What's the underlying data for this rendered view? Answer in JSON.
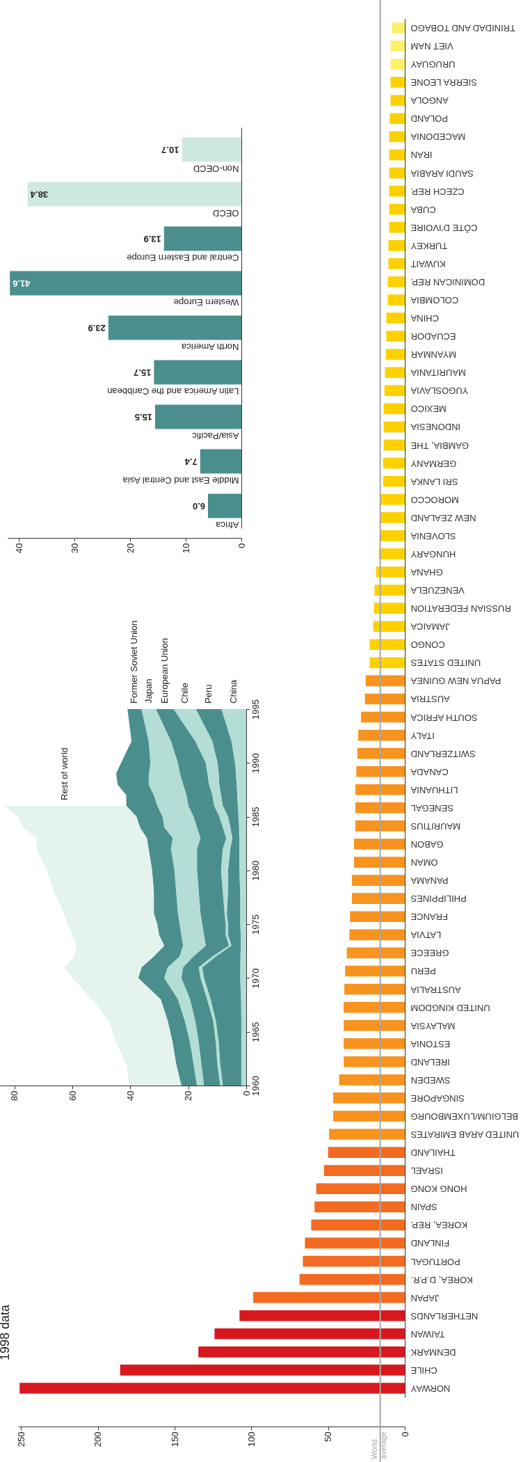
{
  "chart_data": [
    {
      "type": "bar",
      "orientation": "horizontal",
      "title": "1998 data",
      "categories": [
        "TRINIDAD AND TOBAGO",
        "VIET NAM",
        "URUGUAY",
        "SIERRA LEONE",
        "ANGOLA",
        "POLAND",
        "MACEDONIA",
        "IRAN",
        "SAUDI ARABIA",
        "CZECH REP.",
        "CUBA",
        "CÔTE D’IVOIRE",
        "TURKEY",
        "KUWAIT",
        "DOMINICAN REP.",
        "COLOMBIA",
        "CHINA",
        "ECUADOR",
        "MYANMAR",
        "MAURITANIA",
        "YUGOSLAVIA",
        "MEXICO",
        "INDONESIA",
        "GAMBIA, THE",
        "GERMANY",
        "SRI LANKA",
        "MOROCCO",
        "NEW ZEALAND",
        "SLOVENIA",
        "HUNGARY",
        "GHANA",
        "VENEZUELA",
        "RUSSIAN FEDERATION",
        "JAMAICA",
        "CONGO",
        "UNITED STATES",
        "PAPUA NEW GUINEA",
        "AUSTRIA",
        "SOUTH AFRICA",
        "ITALY",
        "SWITZERLAND",
        "CANADA",
        "LITHUANIA",
        "SENEGAL",
        "MAURITIUS",
        "GABON",
        "OMAN",
        "PANAMA",
        "PHILIPPINES",
        "FRANCE",
        "LATVIA",
        "GREECE",
        "PERU",
        "AUSTRALIA",
        "UNITED KINGDOM",
        "MALAYSIA",
        "ESTONIA",
        "IRELAND",
        "SWEDEN",
        "SINGAPORE",
        "BELGIUM/LUXEMBOURG",
        "UNITED ARAB EMIRATES",
        "THAILAND",
        "ISRAEL",
        "HONG KONG",
        "SPAIN",
        "KOREA, REP.",
        "FINLAND",
        "PORTUGAL",
        "KOREA, D.P.R.",
        "JAPAN",
        "NETHERLANDS",
        "TAIWAN",
        "DENMARK",
        "CHILE",
        "NORWAY"
      ],
      "values": [
        8.4,
        9.3,
        9.3,
        9.3,
        9.3,
        9.8,
        10.2,
        10.2,
        10.2,
        10.2,
        10.2,
        10.2,
        10.7,
        10.7,
        11.1,
        11.1,
        12,
        12,
        12.4,
        12.9,
        13.3,
        13.8,
        13.8,
        13.8,
        14.2,
        14.2,
        16,
        16,
        16.4,
        16.9,
        18.8,
        19.7,
        20.1,
        20.5,
        22.9,
        22.9,
        25.5,
        26,
        28.5,
        30.3,
        30.9,
        31.6,
        32.2,
        32.2,
        32.2,
        33.1,
        33.1,
        34.4,
        34.4,
        35.7,
        36.1,
        37.8,
        38.9,
        39.4,
        39.8,
        39.8,
        39.8,
        39.8,
        42.8,
        46.7,
        46.7,
        49.3,
        50,
        52.6,
        57.7,
        58.8,
        61,
        65.1,
        66.4,
        68.6,
        98.8,
        107.7,
        124,
        134.5,
        185.5,
        251
      ],
      "colors": [
        "#fff06b",
        "#fff06b",
        "#fff06b",
        "#fdd100",
        "#fdd100",
        "#fdd100",
        "#fdd100",
        "#fdd100",
        "#fdd100",
        "#fdd100",
        "#fdd100",
        "#fdd100",
        "#fdd100",
        "#fdd100",
        "#fdd100",
        "#fdd100",
        "#fdd100",
        "#fdd100",
        "#fdd100",
        "#fdd100",
        "#fdd100",
        "#fdd100",
        "#fdd100",
        "#fdd100",
        "#fdd100",
        "#fdd100",
        "#fdd100",
        "#fdd100",
        "#fdd100",
        "#fdd100",
        "#fdd100",
        "#fdd100",
        "#fdd100",
        "#fdd100",
        "#fdd100",
        "#fdd100",
        "#f7931e",
        "#f7931e",
        "#f7931e",
        "#f7931e",
        "#f7931e",
        "#f7931e",
        "#f7931e",
        "#f7931e",
        "#f7931e",
        "#f7931e",
        "#f7931e",
        "#f7931e",
        "#f7931e",
        "#f7931e",
        "#f7931e",
        "#f7931e",
        "#f7931e",
        "#f7931e",
        "#f7931e",
        "#f7931e",
        "#f7931e",
        "#f7931e",
        "#f7931e",
        "#f7931e",
        "#f7931e",
        "#f7931e",
        "#f26b21",
        "#f26b21",
        "#f26b21",
        "#f26b21",
        "#f26b21",
        "#f26b21",
        "#f26b21",
        "#f26b21",
        "#f26b21",
        "#d7191f",
        "#d7191f",
        "#d7191f",
        "#d7191f",
        "#d7191f"
      ],
      "xlim": [
        252,
        0
      ],
      "xticks": [
        0,
        50,
        100,
        150,
        200,
        250
      ],
      "ref_lines": [
        {
          "axis": "x",
          "value": 16,
          "label": "World average",
          "color": "#a6a6a6"
        }
      ]
    },
    {
      "type": "area",
      "orientation": "horizontal",
      "stacked": true,
      "x": [
        1960,
        1962,
        1964,
        1966,
        1968,
        1970,
        1971,
        1972,
        1973,
        1974,
        1975,
        1976,
        1978,
        1980,
        1982,
        1983,
        1984,
        1985,
        1986,
        1987,
        1988,
        1989,
        1990,
        1992,
        1995
      ],
      "ylim": [
        1960,
        1995
      ],
      "yticks": [
        1960,
        1965,
        1970,
        1975,
        1980,
        1985,
        1990,
        1995
      ],
      "xlim": [
        85,
        0
      ],
      "xticks": [
        0,
        20,
        40,
        60,
        80
      ],
      "series": [
        {
          "name": "China",
          "color": "#b3ddd5",
          "values": [
            1.7,
            1.7,
            1.7,
            1.7,
            1.8,
            2.1,
            2.1,
            2.0,
            1.9,
            1.9,
            2.1,
            2.1,
            2.1,
            2.4,
            2.4,
            2.4,
            2.5,
            2.7,
            2.9,
            3.1,
            3.3,
            3.6,
            3.9,
            5.1,
            8.6
          ]
        },
        {
          "name": "Peru",
          "color": "#4a8f8d",
          "values": [
            6.4,
            7.3,
            7.8,
            8.8,
            10.5,
            12.5,
            13.1,
            8.5,
            3.2,
            4.4,
            4.2,
            4.6,
            4.2,
            3.9,
            3.1,
            2.4,
            3.0,
            3.6,
            5.2,
            5.6,
            6.0,
            5.9,
            6.0,
            6.6,
            8.8
          ]
        },
        {
          "name": "Chile",
          "color": "#b3ddd5",
          "values": [
            0.9,
            1.0,
            1.0,
            0.9,
            1.2,
            1.2,
            1.2,
            1.2,
            0.9,
            0.8,
            0.8,
            0.8,
            1.8,
            2.4,
            2.6,
            2.1,
            2.6,
            3.0,
            3.0,
            3.0,
            3.6,
            3.9,
            4.1,
            5.9,
            7.7
          ]
        },
        {
          "name": "European Union",
          "color": "#4a8f8d",
          "values": [
            5.6,
            5.5,
            5.9,
            6.2,
            5.9,
            6.6,
            5.4,
            6.5,
            8.0,
            7.5,
            8.1,
            8.3,
            8.3,
            8.3,
            8.9,
            8.9,
            8.9,
            8.9,
            8.9,
            8.9,
            8.9,
            9.5,
            9.6,
            8.4,
            6.1
          ]
        },
        {
          "name": "Japan",
          "color": "#b3ddd5",
          "values": [
            2.4,
            2.7,
            3.0,
            3.6,
            4.2,
            5.9,
            5.3,
            4.8,
            7.8,
            7.8,
            7.8,
            7.8,
            7.8,
            7.8,
            9.0,
            9.6,
            11.3,
            10.7,
            10.7,
            11.3,
            11.9,
            10.7,
            9.5,
            7.7,
            5.0
          ]
        },
        {
          "name": "Former Soviet Union",
          "color": "#4a8f8d",
          "values": [
            5.4,
            6.0,
            6.0,
            5.9,
            5.9,
            9.0,
            9.0,
            8.9,
            6.5,
            7.7,
            7.7,
            8.3,
            7.7,
            7.7,
            7.7,
            8.9,
            8.4,
            9.0,
            10.7,
            9.5,
            10.7,
            11.3,
            10.1,
            5.9,
            4.8
          ]
        },
        {
          "name": "Rest of world",
          "color": "#e4f3ee",
          "values": [
            17.8,
            17.2,
            19.6,
            20.3,
            23.8,
            22.6,
            26.8,
            27.4,
            30.4,
            29.8,
            31.0,
            31.0,
            34.5,
            36.3,
            38.7,
            38.1,
            40.4,
            41.0,
            42.3,
            null,
            null,
            null,
            null,
            null,
            null
          ]
        }
      ]
    },
    {
      "type": "bar",
      "orientation": "horizontal",
      "categories": [
        "Non-OECD",
        "OECD",
        "Central and Eastern Europe",
        "Western Europe",
        "North America",
        "Latin America and the Caribbean",
        "Asia/Pacific",
        "Middle East and Central Asia",
        "Africa"
      ],
      "values": [
        10.7,
        38.4,
        13.9,
        41.6,
        23.9,
        15.7,
        15.5,
        7.4,
        6.0
      ],
      "value_labels": [
        "10.7",
        "38.4",
        "13.9",
        "41.6",
        "23.9",
        "15.7",
        "15.5",
        "7.4",
        "6.0"
      ],
      "colors": [
        "#cfe8e1",
        "#cfe8e1",
        "#4a8f8d",
        "#4a8f8d",
        "#4a8f8d",
        "#4a8f8d",
        "#4a8f8d",
        "#4a8f8d",
        "#4a8f8d"
      ],
      "xlim": [
        42,
        0
      ],
      "xticks": [
        0,
        10,
        20,
        30,
        40
      ]
    }
  ]
}
